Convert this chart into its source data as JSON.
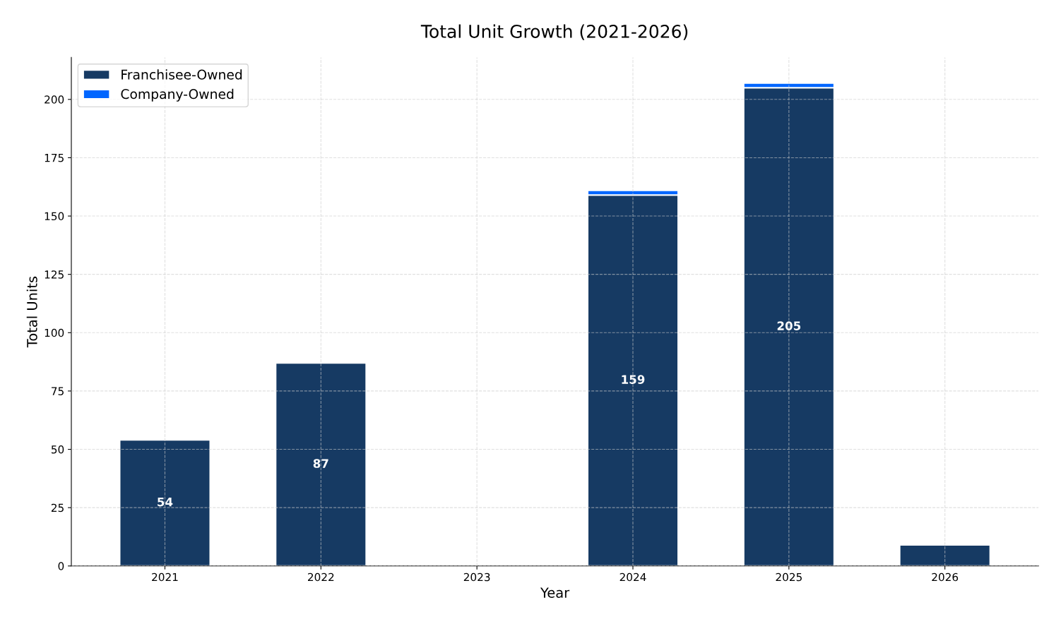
{
  "chart_data": {
    "type": "bar",
    "title": "Total Unit Growth (2021-2026)",
    "xlabel": "Year",
    "ylabel": "Total Units",
    "categories": [
      "2021",
      "2022",
      "2023",
      "2024",
      "2025",
      "2026"
    ],
    "stacked": true,
    "series": [
      {
        "name": "Franchisee-Owned",
        "color": "#163a63",
        "values": [
          54,
          87,
          null,
          159,
          205,
          9
        ],
        "value_labels": [
          "54",
          "87",
          null,
          "159",
          "205",
          null
        ]
      },
      {
        "name": "Company-Owned",
        "color": "#0066ff",
        "values": [
          null,
          null,
          null,
          2,
          2,
          null
        ]
      }
    ],
    "ylim": [
      0,
      218
    ],
    "yticks": [
      0,
      25,
      50,
      75,
      100,
      125,
      150,
      175,
      200
    ],
    "grid": true,
    "legend": "top left"
  }
}
